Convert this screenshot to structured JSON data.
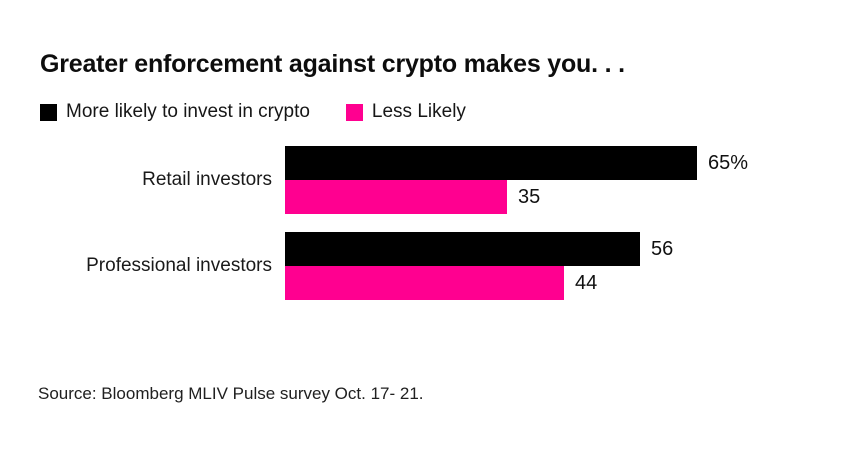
{
  "page": {
    "background": "#ffffff"
  },
  "title": "Greater enforcement against crypto makes you. . .",
  "legend": {
    "items": [
      {
        "label": "More likely to invest in crypto",
        "color": "#000000"
      },
      {
        "label": "Less Likely",
        "color": "#FF0090"
      }
    ]
  },
  "source": "Source: Bloomberg MLIV Pulse survey Oct. 17- 21.",
  "chart_data": {
    "type": "bar",
    "orientation": "horizontal",
    "title": "Greater enforcement against crypto makes you. . .",
    "categories": [
      "Retail investors",
      "Professional investors"
    ],
    "series": [
      {
        "name": "More likely to invest in crypto",
        "color": "#000000",
        "values": [
          65,
          56
        ],
        "labels": [
          "65%",
          "56"
        ]
      },
      {
        "name": "Less Likely",
        "color": "#FF0090",
        "values": [
          35,
          44
        ],
        "labels": [
          "35",
          "44"
        ]
      }
    ],
    "xlim": [
      0,
      65
    ],
    "grid": false,
    "axes_shown": false,
    "value_labels": "end-of-bar",
    "legend_position": "top-left",
    "source_note": "Source: Bloomberg MLIV Pulse survey Oct. 17- 21."
  }
}
